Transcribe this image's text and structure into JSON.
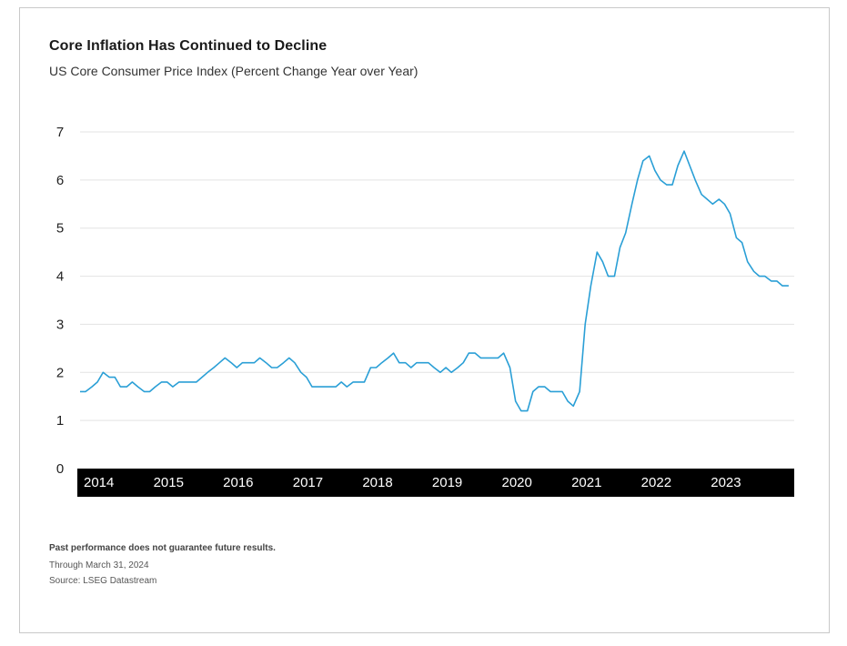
{
  "title": "Core Inflation Has Continued to Decline",
  "subtitle": "US Core Consumer Price Index (Percent Change Year over Year)",
  "footnotes": {
    "disclaimer": "Past performance does not guarantee future results.",
    "through": "Through March 31, 2024",
    "source": "Source: LSEG Datastream"
  },
  "colors": {
    "line": "#2a9fd6",
    "axis_band": "#000000",
    "grid": "#e3e3e3"
  },
  "chart_data": {
    "type": "line",
    "ylim": [
      0,
      7
    ],
    "yticks": [
      0,
      1,
      2,
      3,
      4,
      5,
      6,
      7
    ],
    "xlim": [
      2014.0,
      2024.25
    ],
    "xticks": [
      "2014",
      "2015",
      "2016",
      "2017",
      "2018",
      "2019",
      "2020",
      "2021",
      "2022",
      "2023"
    ],
    "grid": true,
    "series": [
      {
        "x": [
          2014.0,
          2014.08,
          2014.17,
          2014.25,
          2014.33,
          2014.42,
          2014.5,
          2014.58,
          2014.67,
          2014.75,
          2014.83,
          2014.92,
          2015.0,
          2015.08,
          2015.17,
          2015.25,
          2015.33,
          2015.42,
          2015.5,
          2015.58,
          2015.67,
          2015.75,
          2015.83,
          2015.92,
          2016.0,
          2016.08,
          2016.17,
          2016.25,
          2016.33,
          2016.42,
          2016.5,
          2016.58,
          2016.67,
          2016.75,
          2016.83,
          2016.92,
          2017.0,
          2017.08,
          2017.17,
          2017.25,
          2017.33,
          2017.42,
          2017.5,
          2017.58,
          2017.67,
          2017.75,
          2017.83,
          2017.92,
          2018.0,
          2018.08,
          2018.17,
          2018.25,
          2018.33,
          2018.42,
          2018.5,
          2018.58,
          2018.67,
          2018.75,
          2018.83,
          2018.92,
          2019.0,
          2019.08,
          2019.17,
          2019.25,
          2019.33,
          2019.42,
          2019.5,
          2019.58,
          2019.67,
          2019.75,
          2019.83,
          2019.92,
          2020.0,
          2020.08,
          2020.17,
          2020.25,
          2020.33,
          2020.42,
          2020.5,
          2020.58,
          2020.67,
          2020.75,
          2020.83,
          2020.92,
          2021.0,
          2021.08,
          2021.17,
          2021.25,
          2021.33,
          2021.42,
          2021.5,
          2021.58,
          2021.67,
          2021.75,
          2021.83,
          2021.92,
          2022.0,
          2022.08,
          2022.17,
          2022.25,
          2022.33,
          2022.42,
          2022.5,
          2022.58,
          2022.67,
          2022.75,
          2022.83,
          2022.92,
          2023.0,
          2023.08,
          2023.17,
          2023.25,
          2023.33,
          2023.42,
          2023.5,
          2023.58,
          2023.67,
          2023.75,
          2023.83,
          2023.92,
          2024.0,
          2024.08,
          2024.17
        ],
        "y": [
          1.6,
          1.6,
          1.7,
          1.8,
          2.0,
          1.9,
          1.9,
          1.7,
          1.7,
          1.8,
          1.7,
          1.6,
          1.6,
          1.7,
          1.8,
          1.8,
          1.7,
          1.8,
          1.8,
          1.8,
          1.8,
          1.9,
          2.0,
          2.1,
          2.2,
          2.3,
          2.2,
          2.1,
          2.2,
          2.2,
          2.2,
          2.3,
          2.2,
          2.1,
          2.1,
          2.2,
          2.3,
          2.2,
          2.0,
          1.9,
          1.7,
          1.7,
          1.7,
          1.7,
          1.7,
          1.8,
          1.7,
          1.8,
          1.8,
          1.8,
          2.1,
          2.1,
          2.2,
          2.3,
          2.4,
          2.2,
          2.2,
          2.1,
          2.2,
          2.2,
          2.2,
          2.1,
          2.0,
          2.1,
          2.0,
          2.1,
          2.2,
          2.4,
          2.4,
          2.3,
          2.3,
          2.3,
          2.3,
          2.4,
          2.1,
          1.4,
          1.2,
          1.2,
          1.6,
          1.7,
          1.7,
          1.6,
          1.6,
          1.6,
          1.4,
          1.3,
          1.6,
          3.0,
          3.8,
          4.5,
          4.3,
          4.0,
          4.0,
          4.6,
          4.9,
          5.5,
          6.0,
          6.4,
          6.5,
          6.2,
          6.0,
          5.9,
          5.9,
          6.3,
          6.6,
          6.3,
          6.0,
          5.7,
          5.6,
          5.5,
          5.6,
          5.5,
          5.3,
          4.8,
          4.7,
          4.3,
          4.1,
          4.0,
          4.0,
          3.9,
          3.9,
          3.8,
          3.8
        ]
      }
    ]
  }
}
